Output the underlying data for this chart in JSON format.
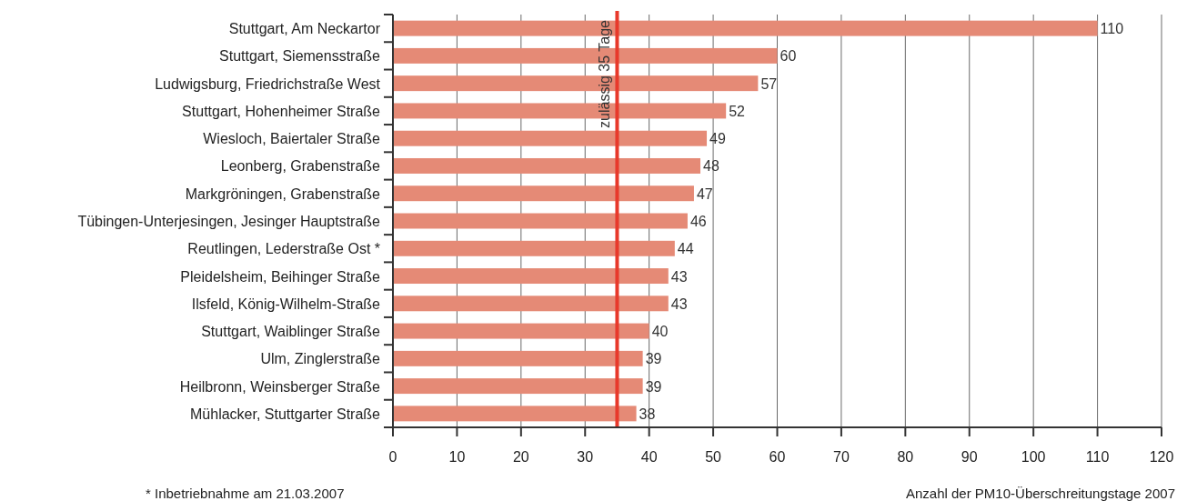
{
  "chart_data": {
    "type": "bar",
    "orientation": "horizontal",
    "categories": [
      "Stuttgart, Am Neckartor",
      "Stuttgart, Siemensstraße",
      "Ludwigsburg, Friedrichstraße West",
      "Stuttgart, Hohenheimer Straße",
      "Wiesloch, Baiertaler Straße",
      "Leonberg, Grabenstraße",
      "Markgröningen, Grabenstraße",
      "Tübingen-Unterjesingen, Jesinger Hauptstraße",
      "Reutlingen, Lederstraße Ost *",
      "Pleidelsheim, Beihinger Straße",
      "Ilsfeld, König-Wilhelm-Straße",
      "Stuttgart, Waiblinger Straße",
      "Ulm, Zinglerstraße",
      "Heilbronn, Weinsberger Straße",
      "Mühlacker, Stuttgarter Straße"
    ],
    "values": [
      110,
      60,
      57,
      52,
      49,
      48,
      47,
      46,
      44,
      43,
      43,
      40,
      39,
      39,
      38
    ],
    "color": "#e58a76",
    "xlim": [
      0,
      120
    ],
    "xticks": [
      0,
      10,
      20,
      30,
      40,
      50,
      60,
      70,
      80,
      90,
      100,
      110,
      120
    ],
    "grid": "x",
    "data_labels": true,
    "xlabel": "Anzahl der PM10-Überschreitungstage 2007",
    "ref_lines": [
      {
        "axis": "x",
        "value": 35,
        "label": "zulässig 35 Tage",
        "color": "#e8392b"
      }
    ],
    "annotations": [
      "* Inbetriebnahme am 21.03.2007"
    ]
  }
}
